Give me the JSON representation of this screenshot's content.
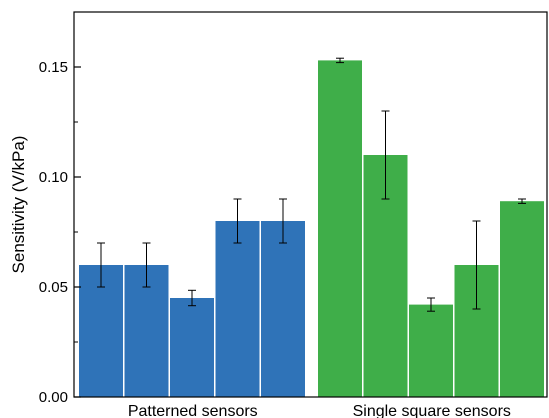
{
  "chart_data": {
    "type": "bar",
    "ylabel": "Sensitivity (V/kPa)",
    "ylim": [
      0,
      0.175
    ],
    "yticks": [
      0.0,
      0.05,
      0.1,
      0.15
    ],
    "ytick_labels": [
      "0.00",
      "0.05",
      "0.10",
      "0.15"
    ],
    "grid": false,
    "groups": [
      {
        "label": "Patterned sensors",
        "color": "#2f73b8",
        "values": [
          0.06,
          0.06,
          0.045,
          0.08,
          0.08
        ],
        "errors": [
          0.01,
          0.01,
          0.0035,
          0.01,
          0.01
        ]
      },
      {
        "label": "Single square sensors",
        "color": "#3fae49",
        "values": [
          0.153,
          0.11,
          0.042,
          0.06,
          0.089
        ],
        "errors": [
          0.001,
          0.02,
          0.003,
          0.02,
          0.001
        ]
      }
    ]
  }
}
